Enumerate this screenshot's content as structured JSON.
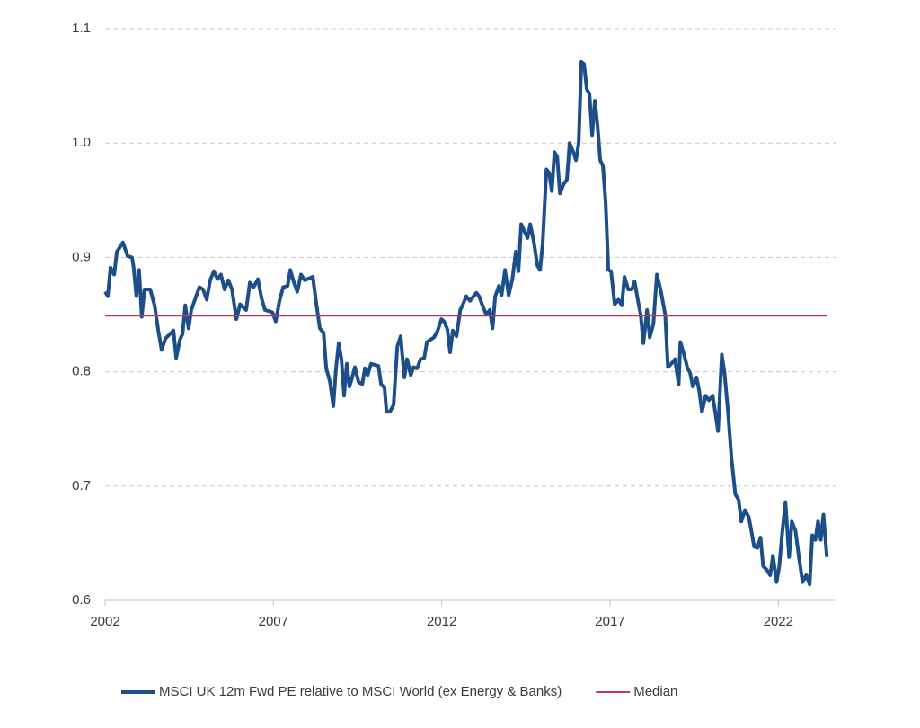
{
  "chart_data": {
    "type": "line",
    "xlim": [
      2002,
      2023.7
    ],
    "xticks": [
      2002,
      2007,
      2012,
      2017,
      2022
    ],
    "ylim": [
      0.6,
      1.1
    ],
    "yticks": [
      0.6,
      0.7,
      0.8,
      0.9,
      {
        "value": 1,
        "label": "1.0"
      },
      1.1
    ],
    "grid": true,
    "legend": "bottom",
    "series": [
      {
        "name": "MSCI UK 12m Fwd PE relative to MSCI World (ex Energy & Banks)",
        "color": "#1c4f8a",
        "x": [
          2002.0,
          2002.08,
          2002.16,
          2002.27,
          2002.35,
          2002.53,
          2002.67,
          2002.8,
          2002.85,
          2002.93,
          2003.01,
          2003.09,
          2003.17,
          2003.34,
          2003.47,
          2003.58,
          2003.68,
          2003.79,
          2004.03,
          2004.11,
          2004.22,
          2004.3,
          2004.38,
          2004.48,
          2004.56,
          2004.8,
          2004.91,
          2005.02,
          2005.12,
          2005.23,
          2005.34,
          2005.44,
          2005.55,
          2005.66,
          2005.77,
          2005.9,
          2006.01,
          2006.19,
          2006.3,
          2006.41,
          2006.54,
          2006.65,
          2006.75,
          2006.97,
          2007.07,
          2007.18,
          2007.29,
          2007.42,
          2007.5,
          2007.61,
          2007.71,
          2007.82,
          2007.93,
          2008.17,
          2008.28,
          2008.38,
          2008.49,
          2008.57,
          2008.68,
          2008.78,
          2008.86,
          2008.94,
          2009.02,
          2009.1,
          2009.18,
          2009.26,
          2009.34,
          2009.42,
          2009.53,
          2009.64,
          2009.72,
          2009.8,
          2009.9,
          2010.12,
          2010.2,
          2010.3,
          2010.36,
          2010.46,
          2010.57,
          2010.68,
          2010.78,
          2010.89,
          2010.97,
          2011.08,
          2011.16,
          2011.27,
          2011.37,
          2011.48,
          2011.56,
          2011.77,
          2011.88,
          2011.99,
          2012.07,
          2012.17,
          2012.25,
          2012.33,
          2012.44,
          2012.55,
          2012.63,
          2012.73,
          2012.84,
          2013.03,
          2013.11,
          2013.21,
          2013.32,
          2013.43,
          2013.51,
          2013.59,
          2013.7,
          2013.78,
          2013.88,
          2013.99,
          2014.1,
          2014.2,
          2014.28,
          2014.36,
          2014.47,
          2014.55,
          2014.63,
          2014.74,
          2014.84,
          2014.92,
          2015.0,
          2015.11,
          2015.19,
          2015.27,
          2015.35,
          2015.43,
          2015.51,
          2015.62,
          2015.72,
          2015.8,
          2015.91,
          2015.99,
          2016.07,
          2016.15,
          2016.23,
          2016.31,
          2016.39,
          2016.47,
          2016.55,
          2016.63,
          2016.71,
          2016.79,
          2016.87,
          2016.95,
          2017.03,
          2017.14,
          2017.25,
          2017.35,
          2017.43,
          2017.54,
          2017.65,
          2017.73,
          2017.83,
          2017.91,
          2017.99,
          2018.1,
          2018.18,
          2018.29,
          2018.39,
          2018.5,
          2018.64,
          2018.72,
          2018.82,
          2018.93,
          2019.04,
          2019.09,
          2019.2,
          2019.3,
          2019.38,
          2019.46,
          2019.57,
          2019.65,
          2019.73,
          2019.84,
          2019.94,
          2020.05,
          2020.13,
          2020.21,
          2020.32,
          2020.4,
          2020.5,
          2020.61,
          2020.72,
          2020.82,
          2020.9,
          2021.01,
          2021.12,
          2021.2,
          2021.28,
          2021.38,
          2021.47,
          2021.55,
          2021.65,
          2021.76,
          2021.84,
          2021.95,
          2022.03,
          2022.11,
          2022.21,
          2022.32,
          2022.4,
          2022.51,
          2022.61,
          2022.72,
          2022.83,
          2022.93,
          2023.01,
          2023.1,
          2023.18,
          2023.26,
          2023.34,
          2023.44
        ],
        "values": [
          0.87,
          0.866,
          0.891,
          0.885,
          0.905,
          0.913,
          0.901,
          0.9,
          0.891,
          0.866,
          0.889,
          0.848,
          0.872,
          0.872,
          0.858,
          0.836,
          0.819,
          0.829,
          0.836,
          0.812,
          0.828,
          0.833,
          0.858,
          0.838,
          0.854,
          0.874,
          0.872,
          0.863,
          0.88,
          0.888,
          0.881,
          0.885,
          0.872,
          0.88,
          0.872,
          0.846,
          0.859,
          0.854,
          0.878,
          0.874,
          0.881,
          0.864,
          0.854,
          0.852,
          0.844,
          0.862,
          0.874,
          0.875,
          0.889,
          0.878,
          0.87,
          0.885,
          0.88,
          0.883,
          0.858,
          0.838,
          0.834,
          0.803,
          0.791,
          0.77,
          0.803,
          0.825,
          0.811,
          0.779,
          0.807,
          0.787,
          0.795,
          0.804,
          0.791,
          0.789,
          0.803,
          0.797,
          0.807,
          0.805,
          0.789,
          0.786,
          0.765,
          0.765,
          0.771,
          0.822,
          0.831,
          0.795,
          0.811,
          0.797,
          0.804,
          0.803,
          0.811,
          0.812,
          0.826,
          0.83,
          0.836,
          0.846,
          0.844,
          0.837,
          0.817,
          0.836,
          0.831,
          0.854,
          0.859,
          0.866,
          0.862,
          0.869,
          0.866,
          0.858,
          0.85,
          0.854,
          0.838,
          0.866,
          0.875,
          0.867,
          0.889,
          0.867,
          0.881,
          0.905,
          0.888,
          0.929,
          0.922,
          0.917,
          0.929,
          0.913,
          0.893,
          0.889,
          0.913,
          0.977,
          0.974,
          0.958,
          0.992,
          0.988,
          0.956,
          0.964,
          0.968,
          1.0,
          0.992,
          0.985,
          1.0,
          1.071,
          1.069,
          1.047,
          1.043,
          1.007,
          1.037,
          1.015,
          0.985,
          0.98,
          0.948,
          0.889,
          0.888,
          0.859,
          0.863,
          0.858,
          0.883,
          0.872,
          0.872,
          0.879,
          0.862,
          0.85,
          0.825,
          0.854,
          0.83,
          0.842,
          0.885,
          0.872,
          0.85,
          0.804,
          0.807,
          0.811,
          0.789,
          0.826,
          0.815,
          0.803,
          0.799,
          0.787,
          0.795,
          0.783,
          0.765,
          0.779,
          0.775,
          0.779,
          0.764,
          0.748,
          0.815,
          0.799,
          0.767,
          0.724,
          0.693,
          0.688,
          0.669,
          0.679,
          0.673,
          0.661,
          0.647,
          0.646,
          0.655,
          0.63,
          0.627,
          0.622,
          0.639,
          0.616,
          0.63,
          0.657,
          0.686,
          0.638,
          0.669,
          0.661,
          0.638,
          0.616,
          0.622,
          0.614,
          0.657,
          0.653,
          0.669,
          0.653,
          0.675,
          0.638
        ]
      },
      {
        "name": "Median",
        "color": "#c0395a",
        "x": [
          2002,
          2023.44
        ],
        "values": [
          0.849,
          0.849
        ]
      }
    ]
  }
}
